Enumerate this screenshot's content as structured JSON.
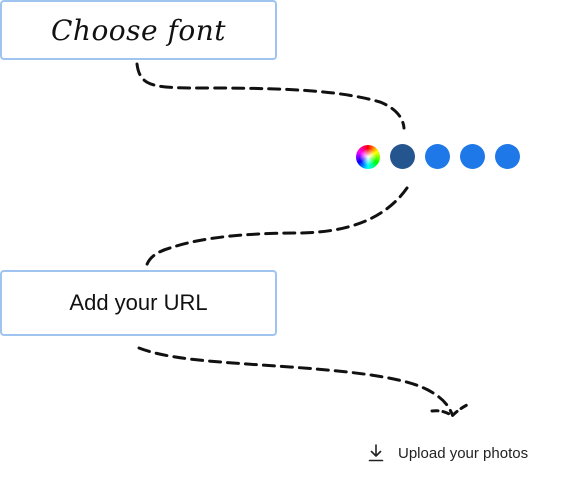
{
  "steps": {
    "font_button_label": "Choose font",
    "url_button_label": "Add your URL",
    "upload_label": "Upload your photos"
  },
  "colors": {
    "box_border": "#9fc4ef",
    "connector": "#111111",
    "swatches": [
      {
        "name": "custom-color",
        "kind": "rainbow"
      },
      {
        "name": "navy-blue",
        "color": "#25558f"
      },
      {
        "name": "blue-1",
        "color": "#1f78e8"
      },
      {
        "name": "blue-2",
        "color": "#1f78e8"
      },
      {
        "name": "blue-3",
        "color": "#1f78e8"
      }
    ]
  },
  "icons": {
    "upload": "download-arrow-icon",
    "connector_end": "arrow-head-icon"
  }
}
